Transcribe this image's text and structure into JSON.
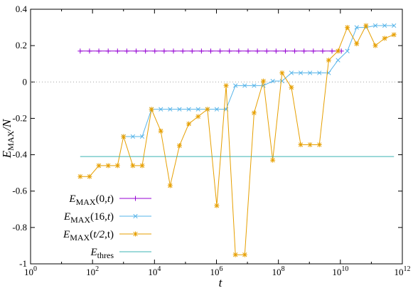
{
  "chart_data": {
    "type": "line",
    "title": "",
    "xlabel": "t",
    "ylabel": "E_MAX/N",
    "x_scale": "log10",
    "xlim": [
      1,
      1000000000000
    ],
    "ylim": [
      -1,
      0.4
    ],
    "grid": false,
    "legend_placement": "bottom-left",
    "x_ticks": [
      {
        "value": 1,
        "base": "10",
        "exp": "0"
      },
      {
        "value": 100,
        "base": "10",
        "exp": "2"
      },
      {
        "value": 10000,
        "base": "10",
        "exp": "4"
      },
      {
        "value": 1000000,
        "base": "10",
        "exp": "6"
      },
      {
        "value": 100000000,
        "base": "10",
        "exp": "8"
      },
      {
        "value": 10000000000,
        "base": "10",
        "exp": "10"
      },
      {
        "value": 1000000000000,
        "base": "10",
        "exp": "12"
      }
    ],
    "y_ticks": [
      {
        "value": 0.4,
        "label": "0.4"
      },
      {
        "value": 0.2,
        "label": "0.2"
      },
      {
        "value": 0,
        "label": "0"
      },
      {
        "value": -0.2,
        "label": "-0.2"
      },
      {
        "value": -0.4,
        "label": "-0.4"
      },
      {
        "value": -0.6,
        "label": "-0.6"
      },
      {
        "value": -0.8,
        "label": "-0.8"
      },
      {
        "value": -1,
        "label": "-1"
      }
    ],
    "reference_line": {
      "y": 0,
      "style": "dotted",
      "color": "#a0a0a0"
    },
    "series": [
      {
        "legend": {
          "pre": "E",
          "sub": "MAX",
          "args": "(0,",
          "arg_italic": "t",
          "post": ")"
        },
        "color": "#9400d3",
        "marker": "plus",
        "x": [
          40,
          80,
          160,
          320,
          640,
          1280,
          2560,
          5120,
          10240,
          20480,
          40960,
          81920,
          163840,
          327680,
          655360,
          1310720,
          2621440,
          5242880,
          10485760,
          20971520,
          41943040,
          83886080,
          167772160,
          335544320,
          671088640,
          1342177280,
          2684354560,
          5368709120,
          10737418240
        ],
        "y": [
          0.17,
          0.17,
          0.17,
          0.17,
          0.17,
          0.17,
          0.17,
          0.17,
          0.17,
          0.17,
          0.17,
          0.17,
          0.17,
          0.17,
          0.17,
          0.17,
          0.17,
          0.17,
          0.17,
          0.17,
          0.17,
          0.17,
          0.17,
          0.17,
          0.17,
          0.17,
          0.17,
          0.17,
          0.17
        ]
      },
      {
        "legend": {
          "pre": "E",
          "sub": "MAX",
          "args": "(16,",
          "arg_italic": "t",
          "post": ")"
        },
        "color": "#56b4e9",
        "marker": "cross",
        "x": [
          1000,
          2000,
          4000,
          8000,
          16000,
          32000,
          64000,
          128000,
          256000,
          512000,
          1024000,
          2048000,
          4096000,
          8192000,
          16384000,
          32768000,
          65536000,
          131072000,
          262144000,
          524288000,
          1048576000,
          2097152000,
          4194304000,
          8388608000,
          16777216000,
          33554432000,
          67108864000,
          134217728000,
          268435456000,
          536870912000
        ],
        "y": [
          -0.3,
          -0.3,
          -0.3,
          -0.15,
          -0.15,
          -0.15,
          -0.15,
          -0.15,
          -0.15,
          -0.15,
          -0.15,
          -0.15,
          -0.02,
          -0.02,
          -0.02,
          -0.02,
          0.005,
          0.005,
          0.05,
          0.05,
          0.05,
          0.05,
          0.05,
          0.12,
          0.17,
          0.3,
          0.3,
          0.31,
          0.31,
          0.31
        ]
      },
      {
        "legend": {
          "pre": "E",
          "sub": "MAX",
          "args": "(",
          "arg_italic": "t/2",
          "post": ",t)"
        },
        "color": "#e69f00",
        "marker": "star",
        "x": [
          40,
          80,
          160,
          320,
          640,
          1000,
          2000,
          4000,
          8000,
          16000,
          32000,
          64000,
          128000,
          256000,
          512000,
          1024000,
          2048000,
          4096000,
          8192000,
          16384000,
          32768000,
          65536000,
          131072000,
          262144000,
          524288000,
          1048576000,
          2097152000,
          4194304000,
          8388608000,
          16777216000,
          33554432000,
          67108864000,
          134217728000,
          268435456000,
          536870912000
        ],
        "y": [
          -0.52,
          -0.52,
          -0.46,
          -0.46,
          -0.46,
          -0.3,
          -0.46,
          -0.46,
          -0.15,
          -0.27,
          -0.57,
          -0.35,
          -0.23,
          -0.19,
          -0.15,
          -0.68,
          -0.02,
          -0.95,
          -0.95,
          -0.17,
          0.005,
          -0.43,
          0.05,
          -0.03,
          -0.345,
          -0.345,
          -0.345,
          0.12,
          0.17,
          0.3,
          0.21,
          0.31,
          0.2,
          0.24,
          0.26
        ]
      },
      {
        "legend": {
          "pre": "E",
          "sub": "thres",
          "args": "",
          "arg_italic": "",
          "post": ""
        },
        "color": "#3cb4b4",
        "marker": "none",
        "x": [
          40,
          536870912000
        ],
        "y": [
          -0.41,
          -0.41
        ]
      }
    ]
  }
}
